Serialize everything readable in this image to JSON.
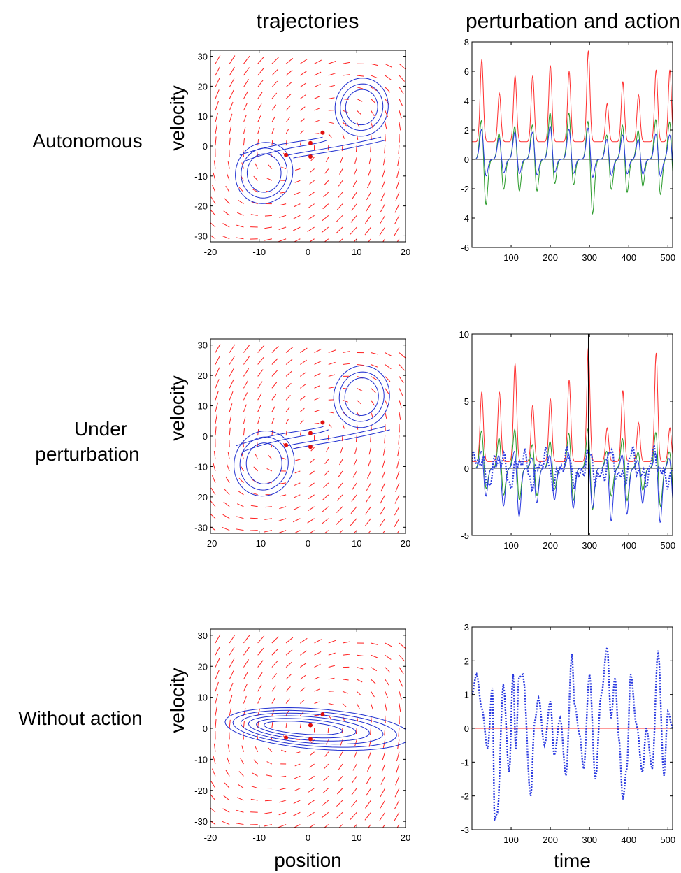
{
  "column_titles": {
    "left": "trajectories",
    "right": "perturbation and action"
  },
  "row_labels": [
    [
      "Autonomous"
    ],
    [
      "Under",
      "perturbation"
    ],
    [
      "Without action"
    ]
  ],
  "axis_labels": {
    "velocity": "velocity",
    "position": "position",
    "time": "time"
  },
  "colors": {
    "arrow": "#ff2020",
    "trajectory": "#1f2fd0",
    "red_series": "#ff3030",
    "green_series": "#2a9a2a",
    "blue_series": "#2a3ae0",
    "dot": "#e01010"
  },
  "chart_data": [
    {
      "type": "vector_field_trajectory",
      "row": "Autonomous",
      "xlabel": "",
      "ylabel": "velocity",
      "xlim": [
        -20,
        20
      ],
      "ylim": [
        -32,
        32
      ],
      "xticks": [
        -20,
        -10,
        0,
        10,
        20
      ],
      "yticks": [
        30,
        20,
        10,
        0,
        -10,
        -20,
        -30
      ],
      "fixed_points": [
        [
          -4.5,
          -3
        ],
        [
          0.5,
          1
        ],
        [
          3,
          4.5
        ],
        [
          0.5,
          -3.5
        ]
      ],
      "trajectory_shape": "figure-eight",
      "trajectory_x_scale": 1.0,
      "trajectory_y_scale": 1.0
    },
    {
      "type": "line",
      "row": "Autonomous",
      "xlim": [
        0,
        512
      ],
      "ylim": [
        -6,
        8
      ],
      "xticks": [
        100,
        200,
        300,
        400,
        500
      ],
      "yticks": [
        8,
        6,
        4,
        2,
        0,
        -2,
        -4,
        -6
      ],
      "series": [
        {
          "color": "red",
          "peaks_x": [
            25,
            70,
            110,
            155,
            200,
            248,
            297,
            345,
            385,
            425,
            470,
            505
          ],
          "peaks_y": [
            6.8,
            4.5,
            5.7,
            5.7,
            6.4,
            6.0,
            7.4,
            3.8,
            5.3,
            4.4,
            6.1,
            6.1
          ],
          "baseline": 1.2
        },
        {
          "color": "green",
          "peaks_x": [
            25,
            70,
            110,
            155,
            200,
            248,
            297,
            345,
            385,
            425,
            470,
            505
          ],
          "peaks_y": [
            3.0,
            2.0,
            2.5,
            2.6,
            3.4,
            3.4,
            3.0,
            1.9,
            2.6,
            2.2,
            3.0,
            2.8
          ],
          "troughs_y": [
            -3.8,
            -2.5,
            -2.7,
            -2.7,
            -2.2,
            -2.3,
            -4.5,
            -2.5,
            -2.8,
            -2.3,
            -3.0,
            -2.5
          ]
        },
        {
          "color": "blue",
          "peaks_x": [
            25,
            70,
            110,
            155,
            200,
            248,
            297,
            345,
            385,
            425,
            470,
            505
          ],
          "peaks_y": [
            2.2,
            1.6,
            2.0,
            2.0,
            2.4,
            2.2,
            2.3,
            1.5,
            1.8,
            1.5,
            1.9,
            1.8
          ],
          "troughs_y": [
            -1.5,
            -1.2,
            -1.3,
            -1.4,
            -1.2,
            -1.3,
            -1.6,
            -1.4,
            -1.3,
            -1.3,
            -1.5,
            -1.2
          ]
        }
      ]
    },
    {
      "type": "vector_field_trajectory",
      "row": "Under perturbation",
      "xlabel": "",
      "ylabel": "velocity",
      "xlim": [
        -20,
        20
      ],
      "ylim": [
        -32,
        32
      ],
      "xticks": [
        -20,
        -10,
        0,
        10,
        20
      ],
      "yticks": [
        30,
        20,
        10,
        0,
        -10,
        -20,
        -30
      ],
      "fixed_points": [
        [
          -4.5,
          -3
        ],
        [
          0.5,
          1
        ],
        [
          3,
          4.5
        ],
        [
          0.5,
          -3.5
        ]
      ],
      "trajectory_shape": "figure-eight",
      "trajectory_x_scale": 1.05,
      "trajectory_y_scale": 1.05
    },
    {
      "type": "line",
      "row": "Under perturbation",
      "xlim": [
        0,
        512
      ],
      "ylim": [
        -5,
        10
      ],
      "xticks": [
        100,
        200,
        300,
        400,
        500
      ],
      "yticks": [
        10,
        5,
        0,
        -5
      ],
      "vline": 297,
      "series": [
        {
          "color": "red",
          "peaks_x": [
            25,
            70,
            110,
            155,
            200,
            248,
            297,
            345,
            385,
            425,
            470,
            505
          ],
          "peaks_y": [
            5.7,
            5.7,
            7.8,
            4.7,
            5.2,
            6.6,
            9.0,
            3.0,
            5.8,
            3.4,
            8.6,
            3.0
          ],
          "baseline": 0.5
        },
        {
          "color": "green",
          "peaks_x": [
            25,
            70,
            110,
            155,
            200,
            248,
            297,
            345,
            385,
            425,
            470,
            505
          ],
          "peaks_y": [
            3.0,
            2.5,
            3.2,
            2.0,
            2.2,
            2.9,
            3.3,
            1.5,
            2.5,
            1.4,
            3.0,
            1.5
          ],
          "troughs_y": [
            -2.0,
            -2.5,
            -3.0,
            -2.5,
            -2.0,
            -3.0,
            -3.8,
            -2.5,
            -3.0,
            -2.0,
            -3.5,
            -3.0
          ]
        },
        {
          "color": "blue",
          "style": "solid",
          "peaks_x": [
            25,
            70,
            110,
            155,
            200,
            248,
            297,
            345,
            385,
            425,
            470,
            505
          ],
          "peaks_y": [
            1.5,
            1.2,
            1.6,
            1.0,
            1.2,
            1.4,
            1.5,
            1.0,
            1.3,
            0.8,
            1.5,
            1.0
          ],
          "troughs_y": [
            -2.5,
            -3.3,
            -4.2,
            -3.0,
            -2.8,
            -3.5,
            -3.5,
            -4.5,
            -4.0,
            -3.0,
            -4.7,
            -3.5
          ]
        },
        {
          "color": "blue",
          "style": "dotted",
          "description_free": true
        }
      ]
    },
    {
      "type": "vector_field_trajectory",
      "row": "Without action",
      "xlabel": "position",
      "ylabel": "velocity",
      "xlim": [
        -20,
        20
      ],
      "ylim": [
        -32,
        32
      ],
      "xticks": [
        -20,
        -10,
        0,
        10,
        20
      ],
      "yticks": [
        30,
        20,
        10,
        0,
        -10,
        -20,
        -30
      ],
      "fixed_points": [
        [
          -4.5,
          -3
        ],
        [
          0.5,
          1
        ],
        [
          3,
          4.5
        ],
        [
          0.5,
          -3.5
        ]
      ],
      "trajectory_shape": "flattened ellipse",
      "trajectory_x_scale": 1.0,
      "trajectory_y_scale": 0.25
    },
    {
      "type": "line",
      "row": "Without action",
      "xlabel": "time",
      "xlim": [
        0,
        512
      ],
      "ylim": [
        -3,
        3
      ],
      "xticks": [
        100,
        200,
        300,
        400,
        500
      ],
      "yticks": [
        3,
        2,
        1,
        0,
        -1,
        -2,
        -3
      ],
      "series": [
        {
          "color": "red",
          "values_constant": 0
        },
        {
          "color": "blue",
          "style": "dotted",
          "x": [
            0,
            12,
            25,
            40,
            52,
            58,
            65,
            80,
            95,
            105,
            112,
            120,
            130,
            150,
            160,
            170,
            185,
            200,
            210,
            225,
            240,
            255,
            262,
            275,
            285,
            300,
            315,
            330,
            345,
            355,
            365,
            375,
            385,
            395,
            405,
            420,
            435,
            445,
            460,
            475,
            490,
            500,
            512
          ],
          "y": [
            1.0,
            1.6,
            0.6,
            -0.6,
            1.2,
            -2.7,
            -2.5,
            1.3,
            -1.3,
            1.6,
            -0.6,
            1.5,
            1.6,
            -2.0,
            0.2,
            0.9,
            -0.5,
            0.8,
            -0.8,
            0.3,
            -1.4,
            2.2,
            0.7,
            -0.2,
            -1.2,
            1.6,
            -1.5,
            1.0,
            2.4,
            0.3,
            1.5,
            -0.3,
            -2.1,
            -1.2,
            1.6,
            0.1,
            -1.3,
            0.0,
            -1.2,
            2.3,
            -1.4,
            0.5,
            0.0
          ]
        }
      ]
    }
  ]
}
